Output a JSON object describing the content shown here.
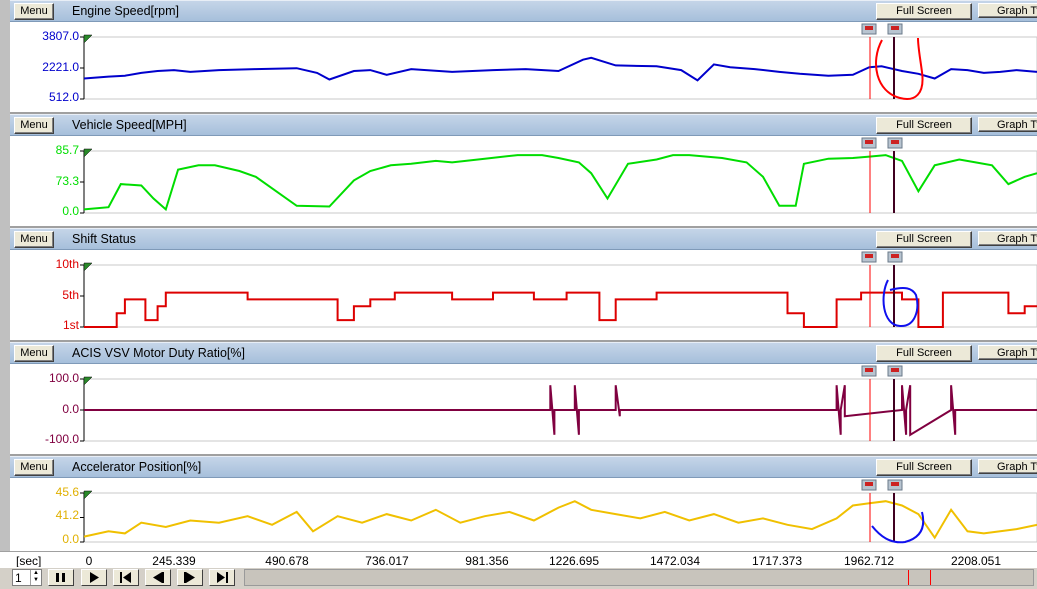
{
  "colors": {
    "engine": "#0000cc",
    "vehicle": "#00dd00",
    "shift": "#dd0000",
    "acis": "#800040",
    "accel": "#f0c000",
    "annotation_red": "#ff0000",
    "annotation_blue": "#1010ee",
    "cursor_red": "#ff0000",
    "cursor_dark": "#400020"
  },
  "buttons": {
    "menu": "Menu",
    "full_screen": "Full Screen",
    "graph_type": "Graph Type"
  },
  "panels": [
    {
      "title": "Engine Speed[rpm]",
      "y_labels": [
        "3807.0",
        "2221.0",
        "512.0"
      ]
    },
    {
      "title": "Vehicle Speed[MPH]",
      "y_labels": [
        "85.7",
        "73.3",
        "0.0"
      ]
    },
    {
      "title": "Shift Status",
      "y_labels": [
        "10th",
        "5th",
        "1st"
      ]
    },
    {
      "title": "ACIS VSV Motor Duty Ratio[%]",
      "y_labels": [
        "100.0",
        "0.0",
        "-100.0"
      ]
    },
    {
      "title": "Accelerator Position[%]",
      "y_labels": [
        "45.6",
        "41.2",
        "0.0"
      ]
    }
  ],
  "x_axis": {
    "unit_label": "[sec]",
    "ticks": [
      "0",
      "245.339",
      "490.678",
      "736.017",
      "981.356",
      "1226.695",
      "1472.034",
      "1717.373",
      "1962.712",
      "2208.051"
    ]
  },
  "playback": {
    "page": "1",
    "icons": [
      "pause-icon",
      "play-icon",
      "skip-start-icon",
      "step-back-icon",
      "step-forward-icon",
      "skip-end-icon"
    ]
  },
  "chart_data": [
    {
      "type": "line",
      "title": "Engine Speed[rpm]",
      "ylim": [
        512.0,
        3807.0
      ],
      "xlim": [
        0,
        2330
      ],
      "series": [
        {
          "name": "Engine Speed[rpm]",
          "x": [
            0,
            60,
            100,
            140,
            180,
            220,
            260,
            330,
            420,
            520,
            570,
            600,
            660,
            700,
            740,
            800,
            900,
            1000,
            1080,
            1160,
            1220,
            1240,
            1300,
            1400,
            1460,
            1500,
            1540,
            1580,
            1640,
            1700,
            1750,
            1820,
            1880,
            1920,
            1950,
            2000,
            2040,
            2080,
            2120,
            2160,
            2200,
            2240,
            2280,
            2330
          ],
          "y": [
            1600,
            1700,
            1750,
            1900,
            2000,
            2050,
            1950,
            2050,
            2100,
            2150,
            1900,
            1550,
            2000,
            2050,
            1800,
            2100,
            1950,
            2050,
            2100,
            2000,
            2600,
            2700,
            2300,
            2250,
            2050,
            1500,
            2350,
            2200,
            2100,
            1950,
            1850,
            1750,
            1800,
            2200,
            2250,
            2000,
            1850,
            1600,
            2100,
            2050,
            1900,
            1950,
            2050,
            1950
          ]
        }
      ]
    },
    {
      "type": "line",
      "title": "Vehicle Speed[MPH]",
      "ylim": [
        0.0,
        85.7
      ],
      "xlim": [
        0,
        2330
      ],
      "series": [
        {
          "name": "Vehicle Speed[MPH]",
          "x": [
            0,
            60,
            90,
            140,
            170,
            200,
            230,
            280,
            320,
            380,
            420,
            520,
            600,
            660,
            700,
            750,
            800,
            860,
            900,
            980,
            1060,
            1120,
            1160,
            1210,
            1240,
            1280,
            1330,
            1400,
            1440,
            1480,
            1560,
            1620,
            1660,
            1700,
            1740,
            1760,
            1820,
            1880,
            1920,
            1960,
            2000,
            2040,
            2080,
            2140,
            2180,
            2220,
            2260,
            2300,
            2330
          ],
          "y": [
            5,
            8,
            40,
            38,
            20,
            5,
            60,
            66,
            66,
            58,
            50,
            10,
            9,
            45,
            58,
            66,
            68,
            72,
            70,
            75,
            80,
            80,
            76,
            70,
            55,
            20,
            68,
            74,
            80,
            80,
            76,
            70,
            50,
            10,
            10,
            68,
            75,
            76,
            78,
            80,
            72,
            30,
            66,
            74,
            70,
            66,
            40,
            50,
            55
          ]
        }
      ]
    },
    {
      "type": "line",
      "title": "Shift Status",
      "ylim": [
        1,
        10
      ],
      "xlim": [
        0,
        2330
      ],
      "series": [
        {
          "name": "Shift Status",
          "x": [
            0,
            60,
            80,
            100,
            130,
            150,
            180,
            200,
            240,
            300,
            400,
            500,
            620,
            660,
            700,
            760,
            800,
            900,
            1000,
            1060,
            1100,
            1180,
            1220,
            1260,
            1300,
            1400,
            1500,
            1600,
            1680,
            1720,
            1760,
            1840,
            1900,
            1960,
            2000,
            2040,
            2100,
            2180,
            2260,
            2300,
            2330
          ],
          "y": [
            1,
            1,
            3,
            5,
            5,
            2,
            4,
            6,
            6,
            6,
            5,
            5,
            2,
            4,
            5,
            6,
            6,
            5,
            6,
            6,
            5,
            6,
            6,
            2,
            5,
            6,
            6,
            6,
            6,
            3,
            1,
            5,
            6,
            6,
            5,
            1,
            6,
            6,
            3,
            4,
            4
          ]
        }
      ]
    },
    {
      "type": "line",
      "title": "ACIS VSV Motor Duty Ratio[%]",
      "ylim": [
        -100.0,
        100.0
      ],
      "xlim": [
        0,
        2330
      ],
      "series": [
        {
          "name": "ACIS VSV Motor Duty Ratio[%]",
          "x": [
            0,
            1140,
            1140,
            1150,
            1150,
            1200,
            1200,
            1210,
            1210,
            1300,
            1300,
            1310,
            1310,
            1840,
            1840,
            1850,
            1850,
            1860,
            1860,
            2000,
            2000,
            2010,
            2010,
            2020,
            2020,
            2120,
            2120,
            2130,
            2130,
            2330
          ],
          "y": [
            0,
            0,
            80,
            -80,
            0,
            0,
            80,
            -80,
            0,
            0,
            80,
            -20,
            0,
            0,
            80,
            -80,
            0,
            80,
            -20,
            0,
            80,
            -80,
            0,
            80,
            -80,
            0,
            80,
            -80,
            0,
            0
          ]
        }
      ]
    },
    {
      "type": "line",
      "title": "Accelerator Position[%]",
      "ylim": [
        0.0,
        45.6
      ],
      "xlim": [
        0,
        2330
      ],
      "series": [
        {
          "name": "Accelerator Position[%]",
          "x": [
            0,
            60,
            100,
            140,
            200,
            260,
            330,
            400,
            460,
            520,
            560,
            620,
            680,
            740,
            800,
            860,
            920,
            980,
            1040,
            1100,
            1160,
            1200,
            1240,
            1300,
            1360,
            1420,
            1480,
            1540,
            1600,
            1660,
            1720,
            1780,
            1840,
            1880,
            1920,
            1960,
            2000,
            2040,
            2080,
            2120,
            2160,
            2200,
            2240,
            2280,
            2330
          ],
          "y": [
            5,
            10,
            8,
            18,
            14,
            20,
            18,
            24,
            16,
            28,
            10,
            24,
            18,
            26,
            20,
            30,
            18,
            24,
            28,
            20,
            32,
            38,
            30,
            26,
            22,
            28,
            20,
            26,
            18,
            22,
            16,
            12,
            22,
            34,
            36,
            38,
            34,
            26,
            4,
            30,
            10,
            8,
            10,
            12,
            16
          ]
        }
      ]
    }
  ]
}
